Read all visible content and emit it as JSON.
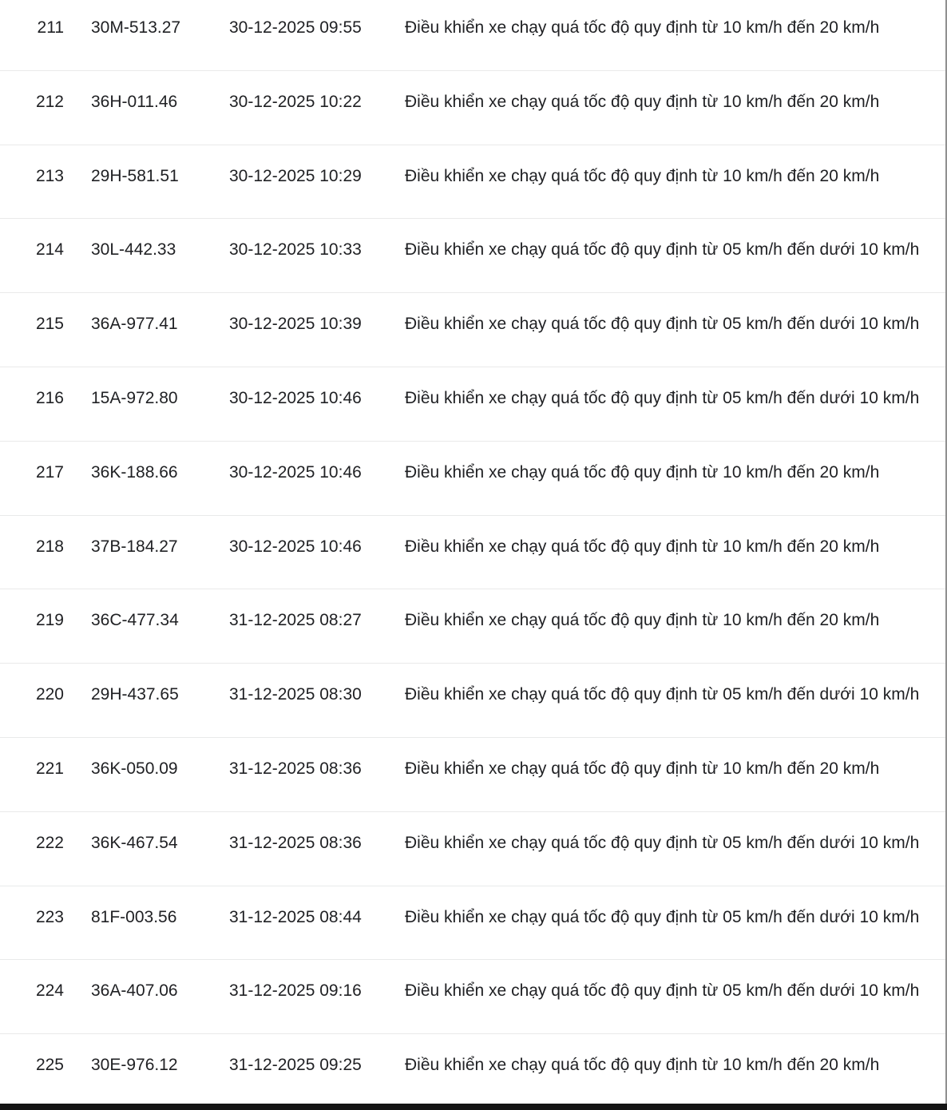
{
  "table": {
    "rows": [
      {
        "index": "211",
        "plate": "30M-513.27",
        "time": "30-12-2025 09:55",
        "violation": "Điều khiển xe chạy quá tốc độ quy định từ 10 km/h đến 20 km/h"
      },
      {
        "index": "212",
        "plate": "36H-011.46",
        "time": "30-12-2025 10:22",
        "violation": "Điều khiển xe chạy quá tốc độ quy định từ 10 km/h đến 20 km/h"
      },
      {
        "index": "213",
        "plate": "29H-581.51",
        "time": "30-12-2025 10:29",
        "violation": "Điều khiển xe chạy quá tốc độ quy định từ 10 km/h đến 20 km/h"
      },
      {
        "index": "214",
        "plate": "30L-442.33",
        "time": "30-12-2025 10:33",
        "violation": "Điều khiển xe chạy quá tốc độ quy định từ 05 km/h đến dưới 10 km/h"
      },
      {
        "index": "215",
        "plate": "36A-977.41",
        "time": "30-12-2025 10:39",
        "violation": "Điều khiển xe chạy quá tốc độ quy định từ 05 km/h đến dưới 10 km/h"
      },
      {
        "index": "216",
        "plate": "15A-972.80",
        "time": "30-12-2025 10:46",
        "violation": "Điều khiển xe chạy quá tốc độ quy định từ 05 km/h đến dưới 10 km/h"
      },
      {
        "index": "217",
        "plate": "36K-188.66",
        "time": "30-12-2025 10:46",
        "violation": "Điều khiển xe chạy quá tốc độ quy định từ 10 km/h đến 20 km/h"
      },
      {
        "index": "218",
        "plate": "37B-184.27",
        "time": "30-12-2025 10:46",
        "violation": "Điều khiển xe chạy quá tốc độ quy định từ 10 km/h đến 20 km/h"
      },
      {
        "index": "219",
        "plate": "36C-477.34",
        "time": "31-12-2025 08:27",
        "violation": "Điều khiển xe chạy quá tốc độ quy định từ 10 km/h đến 20 km/h"
      },
      {
        "index": "220",
        "plate": "29H-437.65",
        "time": "31-12-2025 08:30",
        "violation": "Điều khiển xe chạy quá tốc độ quy định từ 05 km/h đến dưới 10 km/h"
      },
      {
        "index": "221",
        "plate": "36K-050.09",
        "time": "31-12-2025 08:36",
        "violation": "Điều khiển xe chạy quá tốc độ quy định từ 10 km/h đến 20 km/h"
      },
      {
        "index": "222",
        "plate": "36K-467.54",
        "time": "31-12-2025 08:36",
        "violation": "Điều khiển xe chạy quá tốc độ quy định từ 05 km/h đến dưới 10 km/h"
      },
      {
        "index": "223",
        "plate": "81F-003.56",
        "time": "31-12-2025 08:44",
        "violation": "Điều khiển xe chạy quá tốc độ quy định từ 05 km/h đến dưới 10 km/h"
      },
      {
        "index": "224",
        "plate": "36A-407.06",
        "time": "31-12-2025 09:16",
        "violation": "Điều khiển xe chạy quá tốc độ quy định từ 05 km/h đến dưới 10 km/h"
      },
      {
        "index": "225",
        "plate": "30E-976.12",
        "time": "31-12-2025 09:25",
        "violation": "Điều khiển xe chạy quá tốc độ quy định từ 10 km/h đến 20 km/h"
      }
    ]
  },
  "colors": {
    "text": "#202124",
    "row_separator": "#e9eaea",
    "right_border": "#909090",
    "bottom_bar": "#141414"
  }
}
